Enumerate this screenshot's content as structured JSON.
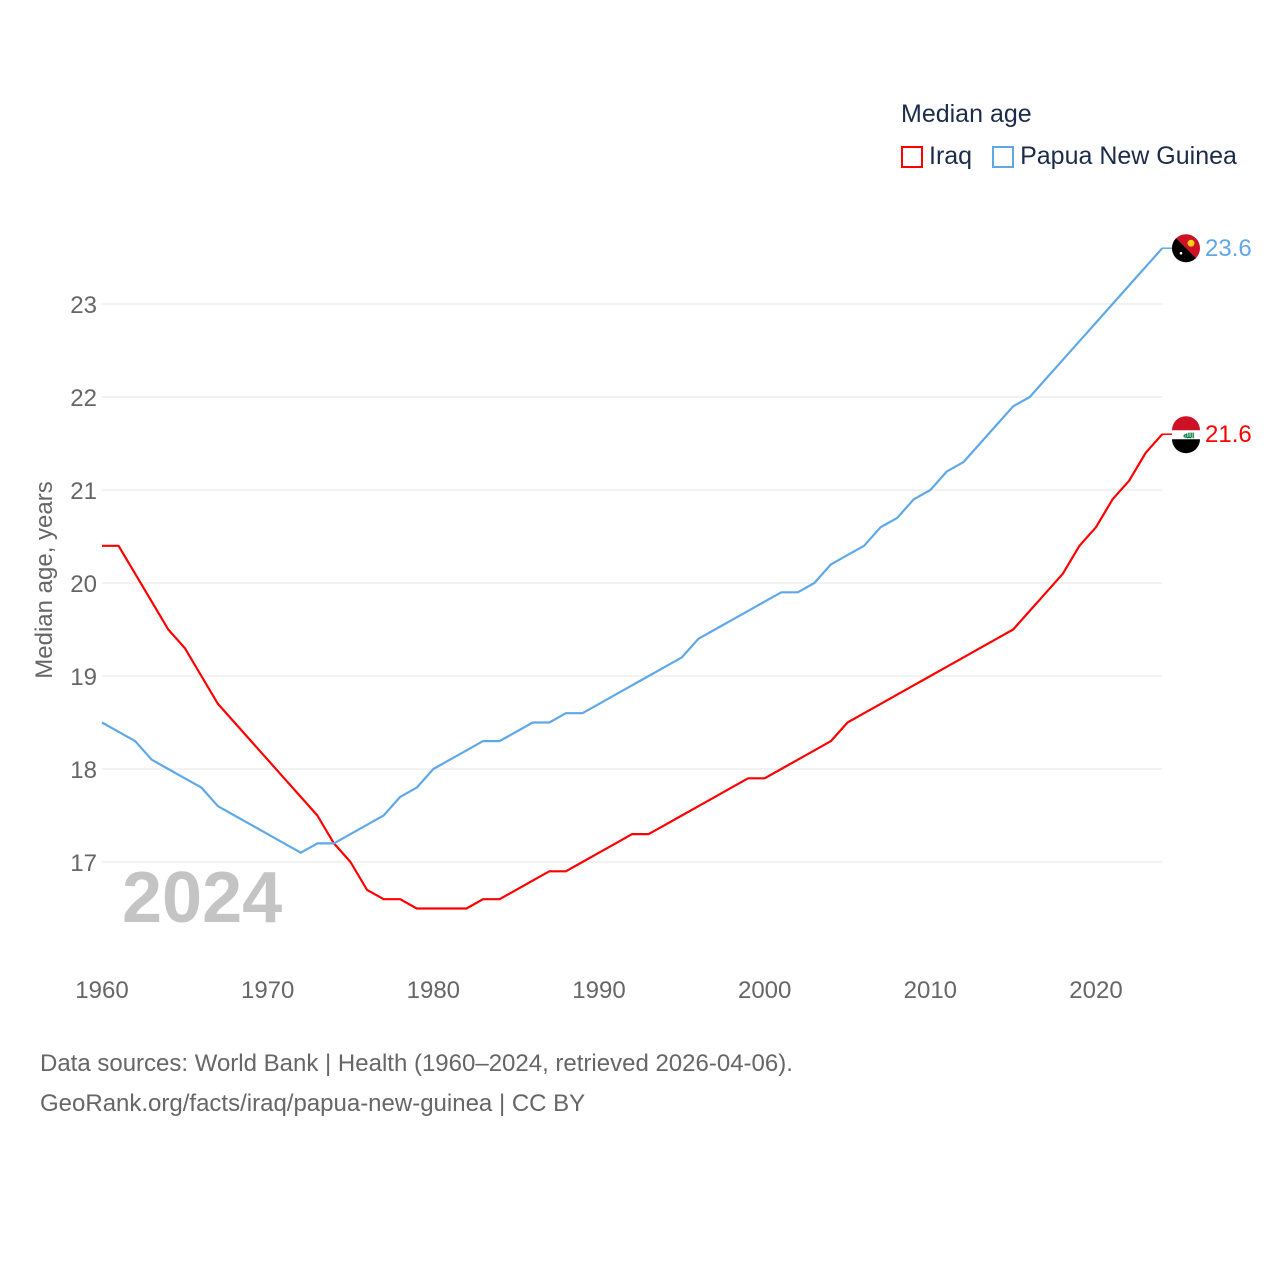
{
  "chart_data": {
    "type": "line",
    "title": "Median age",
    "ylabel": "Median age, years",
    "xlabel": "",
    "xlim": [
      1960,
      2024
    ],
    "ylim": [
      16,
      23.7
    ],
    "x_ticks": [
      1960,
      1970,
      1980,
      1990,
      2000,
      2010,
      2020
    ],
    "y_ticks": [
      17,
      18,
      19,
      20,
      21,
      22,
      23
    ],
    "grid": true,
    "legend_position": "top-right",
    "year_label": "2024",
    "x": [
      1960,
      1961,
      1962,
      1963,
      1964,
      1965,
      1966,
      1967,
      1968,
      1969,
      1970,
      1971,
      1972,
      1973,
      1974,
      1975,
      1976,
      1977,
      1978,
      1979,
      1980,
      1981,
      1982,
      1983,
      1984,
      1985,
      1986,
      1987,
      1988,
      1989,
      1990,
      1991,
      1992,
      1993,
      1994,
      1995,
      1996,
      1997,
      1998,
      1999,
      2000,
      2001,
      2002,
      2003,
      2004,
      2005,
      2006,
      2007,
      2008,
      2009,
      2010,
      2011,
      2012,
      2013,
      2014,
      2015,
      2016,
      2017,
      2018,
      2019,
      2020,
      2021,
      2022,
      2023,
      2024
    ],
    "series": [
      {
        "name": "Iraq",
        "color": "#ff0000",
        "end_label": "21.6",
        "values": [
          20.4,
          20.4,
          20.1,
          19.8,
          19.5,
          19.3,
          19.0,
          18.7,
          18.5,
          18.3,
          18.1,
          17.9,
          17.7,
          17.5,
          17.2,
          17.0,
          16.7,
          16.6,
          16.6,
          16.5,
          16.5,
          16.5,
          16.5,
          16.6,
          16.6,
          16.7,
          16.8,
          16.9,
          16.9,
          17.0,
          17.1,
          17.2,
          17.3,
          17.3,
          17.4,
          17.5,
          17.6,
          17.7,
          17.8,
          17.9,
          17.9,
          18.0,
          18.1,
          18.2,
          18.3,
          18.5,
          18.6,
          18.7,
          18.8,
          18.9,
          19.0,
          19.1,
          19.2,
          19.3,
          19.4,
          19.5,
          19.7,
          19.9,
          20.1,
          20.4,
          20.6,
          20.9,
          21.1,
          21.4,
          21.6
        ]
      },
      {
        "name": "Papua New Guinea",
        "color": "#5fa8e8",
        "end_label": "23.6",
        "values": [
          18.5,
          18.4,
          18.3,
          18.1,
          18.0,
          17.9,
          17.8,
          17.6,
          17.5,
          17.4,
          17.3,
          17.2,
          17.1,
          17.2,
          17.2,
          17.3,
          17.4,
          17.5,
          17.7,
          17.8,
          18.0,
          18.1,
          18.2,
          18.3,
          18.3,
          18.4,
          18.5,
          18.5,
          18.6,
          18.6,
          18.7,
          18.8,
          18.9,
          19.0,
          19.1,
          19.2,
          19.4,
          19.5,
          19.6,
          19.7,
          19.8,
          19.9,
          19.9,
          20.0,
          20.2,
          20.3,
          20.4,
          20.6,
          20.7,
          20.9,
          21.0,
          21.2,
          21.3,
          21.5,
          21.7,
          21.9,
          22.0,
          22.2,
          22.4,
          22.6,
          22.8,
          23.0,
          23.2,
          23.4,
          23.6
        ]
      }
    ]
  },
  "footer": {
    "line1": "Data sources: World Bank | Health (1960–2024, retrieved 2026-04-06).",
    "line2": "GeoRank.org/facts/iraq/papua-new-guinea | CC BY"
  }
}
